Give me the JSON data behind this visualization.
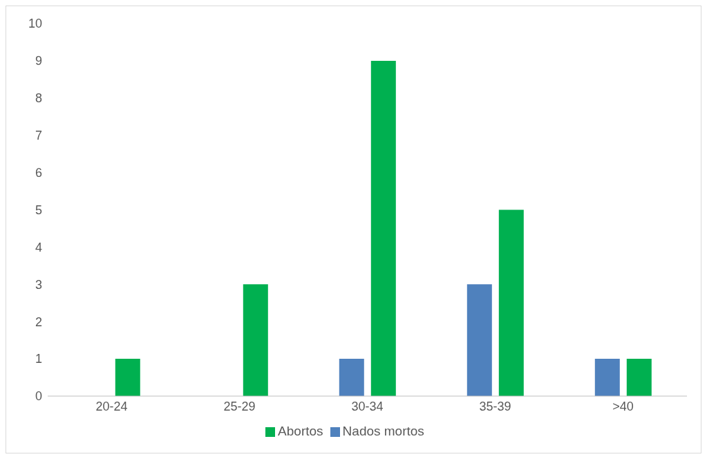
{
  "chart_data": {
    "type": "bar",
    "categories": [
      "20-24",
      "25-29",
      "30-34",
      "35-39",
      ">40"
    ],
    "series": [
      {
        "name": "Nados mortos",
        "color": "#4f81bd",
        "values": [
          0,
          0,
          1,
          3,
          1
        ]
      },
      {
        "name": "Abortos",
        "color": "#00b050",
        "values": [
          1,
          3,
          9,
          5,
          1
        ]
      }
    ],
    "ylim": [
      0,
      10
    ],
    "yticks": [
      0,
      1,
      2,
      3,
      4,
      5,
      6,
      7,
      8,
      9,
      10
    ],
    "grid": false,
    "legend": "bottom"
  }
}
